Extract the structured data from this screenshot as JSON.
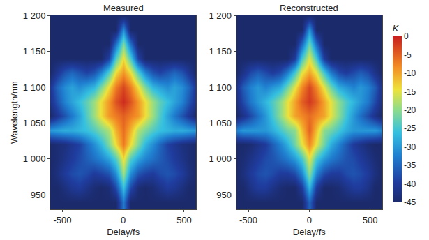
{
  "chart_data": [
    {
      "type": "heatmap",
      "title": "Measured",
      "xlabel": "Delay/fs",
      "ylabel": "Wavelength/nm",
      "xlim": [
        -600,
        600
      ],
      "ylim": [
        930,
        1200
      ],
      "xticks": [
        -500,
        0,
        500
      ],
      "yticks": [
        950,
        {
          "value": 1000,
          "label": "1 000"
        },
        {
          "value": 1050,
          "label": "1 050"
        },
        {
          "value": 1100,
          "label": "1 100"
        },
        {
          "value": 1150,
          "label": "1 150"
        },
        {
          "value": 1200,
          "label": "1 200"
        }
      ],
      "x": [
        -600,
        -540,
        -480,
        -420,
        -360,
        -300,
        -240,
        -180,
        -120,
        -60,
        0,
        60,
        120,
        180,
        240,
        300,
        360,
        420,
        480,
        540,
        600
      ],
      "y": [
        940,
        960,
        980,
        1000,
        1020,
        1040,
        1060,
        1080,
        1100,
        1120,
        1140,
        1160,
        1180,
        1200
      ],
      "colorbar_range": [
        -45,
        0
      ],
      "z": [
        [
          -45,
          -45,
          -45,
          -45,
          -45,
          -45,
          -45,
          -45,
          -45,
          -45,
          -33,
          -45,
          -45,
          -45,
          -45,
          -45,
          -45,
          -45,
          -45,
          -45,
          -45
        ],
        [
          -45,
          -45,
          -43,
          -41,
          -40,
          -42,
          -44,
          -45,
          -44,
          -38,
          -26,
          -38,
          -44,
          -45,
          -44,
          -42,
          -40,
          -41,
          -43,
          -45,
          -45
        ],
        [
          -45,
          -43,
          -40,
          -38,
          -37,
          -38,
          -40,
          -39,
          -37,
          -31,
          -19,
          -31,
          -37,
          -39,
          -40,
          -38,
          -37,
          -38,
          -40,
          -43,
          -45
        ],
        [
          -45,
          -44,
          -42,
          -40,
          -38,
          -36,
          -34,
          -32,
          -29,
          -24,
          -14,
          -24,
          -29,
          -32,
          -34,
          -36,
          -38,
          -40,
          -42,
          -44,
          -45
        ],
        [
          -45,
          -44,
          -43,
          -41,
          -39,
          -35,
          -31,
          -27,
          -21,
          -14,
          -7,
          -14,
          -21,
          -27,
          -31,
          -35,
          -39,
          -41,
          -43,
          -44,
          -45
        ],
        [
          -30,
          -29,
          -28,
          -28,
          -27,
          -26,
          -24,
          -21,
          -18,
          -11,
          -6,
          -11,
          -18,
          -21,
          -24,
          -26,
          -27,
          -28,
          -28,
          -29,
          -30
        ],
        [
          -45,
          -41,
          -37,
          -33,
          -29,
          -24,
          -19,
          -14,
          -9,
          -7,
          -5,
          -7,
          -9,
          -14,
          -19,
          -24,
          -29,
          -33,
          -37,
          -41,
          -45
        ],
        [
          -42,
          -37,
          -32,
          -29,
          -26,
          -23,
          -19,
          -14,
          -9,
          -4,
          -1,
          -4,
          -9,
          -14,
          -19,
          -23,
          -26,
          -29,
          -32,
          -37,
          -42
        ],
        [
          -41,
          -35,
          -31,
          -29,
          -31,
          -29,
          -27,
          -21,
          -14,
          -7,
          -3,
          -7,
          -14,
          -21,
          -27,
          -29,
          -31,
          -29,
          -31,
          -35,
          -41
        ],
        [
          -45,
          -41,
          -37,
          -35,
          -37,
          -39,
          -37,
          -32,
          -24,
          -14,
          -9,
          -14,
          -24,
          -32,
          -37,
          -39,
          -37,
          -35,
          -37,
          -41,
          -45
        ],
        [
          -45,
          -45,
          -45,
          -45,
          -45,
          -45,
          -45,
          -45,
          -39,
          -24,
          -14,
          -24,
          -39,
          -45,
          -45,
          -45,
          -45,
          -45,
          -45,
          -45,
          -45
        ],
        [
          -45,
          -45,
          -45,
          -45,
          -45,
          -45,
          -45,
          -45,
          -45,
          -34,
          -21,
          -34,
          -45,
          -45,
          -45,
          -45,
          -45,
          -45,
          -45,
          -45,
          -45
        ],
        [
          -45,
          -45,
          -45,
          -45,
          -45,
          -45,
          -45,
          -45,
          -45,
          -45,
          -31,
          -45,
          -45,
          -45,
          -45,
          -45,
          -45,
          -45,
          -45,
          -45,
          -45
        ],
        [
          -45,
          -45,
          -45,
          -45,
          -45,
          -45,
          -45,
          -45,
          -45,
          -45,
          -45,
          -45,
          -45,
          -45,
          -45,
          -45,
          -45,
          -45,
          -45,
          -45,
          -45
        ]
      ]
    },
    {
      "type": "heatmap",
      "title": "Reconstructed",
      "xlabel": "Delay/fs",
      "xlim": [
        -600,
        600
      ],
      "ylim": [
        930,
        1200
      ],
      "xticks": [
        -500,
        0,
        500
      ],
      "yticks": [
        950,
        {
          "value": 1000,
          "label": "1 000"
        },
        {
          "value": 1050,
          "label": "1 050"
        },
        {
          "value": 1100,
          "label": "1 100"
        },
        {
          "value": 1150,
          "label": "1 150"
        },
        {
          "value": 1200,
          "label": "1 200"
        }
      ],
      "x": [
        -600,
        -540,
        -480,
        -420,
        -360,
        -300,
        -240,
        -180,
        -120,
        -60,
        0,
        60,
        120,
        180,
        240,
        300,
        360,
        420,
        480,
        540,
        600
      ],
      "y": [
        940,
        960,
        980,
        1000,
        1020,
        1040,
        1060,
        1080,
        1100,
        1120,
        1140,
        1160,
        1180,
        1200
      ],
      "colorbar_range": [
        -45,
        0
      ],
      "colorbar_title": "K",
      "colorbar_ticks": [
        0,
        -5,
        -10,
        -15,
        -20,
        -25,
        -30,
        -35,
        -40,
        -45
      ],
      "z": [
        [
          -45,
          -45,
          -45,
          -45,
          -45,
          -45,
          -45,
          -45,
          -45,
          -45,
          -35,
          -45,
          -45,
          -45,
          -45,
          -45,
          -45,
          -45,
          -45,
          -45,
          -45
        ],
        [
          -45,
          -45,
          -42,
          -40,
          -40,
          -42,
          -44,
          -45,
          -45,
          -40,
          -27,
          -40,
          -45,
          -45,
          -44,
          -42,
          -40,
          -40,
          -42,
          -45,
          -45
        ],
        [
          -45,
          -43,
          -40,
          -38,
          -37,
          -38,
          -40,
          -40,
          -38,
          -32,
          -20,
          -32,
          -38,
          -40,
          -40,
          -38,
          -37,
          -38,
          -40,
          -43,
          -45
        ],
        [
          -45,
          -44,
          -42,
          -40,
          -38,
          -37,
          -35,
          -33,
          -30,
          -25,
          -15,
          -25,
          -30,
          -33,
          -35,
          -37,
          -38,
          -40,
          -42,
          -44,
          -45
        ],
        [
          -45,
          -45,
          -44,
          -42,
          -40,
          -36,
          -32,
          -28,
          -22,
          -15,
          -8,
          -15,
          -22,
          -28,
          -32,
          -36,
          -40,
          -42,
          -44,
          -45,
          -45
        ],
        [
          -32,
          -30,
          -30,
          -30,
          -30,
          -28,
          -25,
          -22,
          -20,
          -12,
          -5,
          -12,
          -20,
          -22,
          -25,
          -28,
          -30,
          -30,
          -30,
          -30,
          -32
        ],
        [
          -45,
          -42,
          -38,
          -34,
          -30,
          -25,
          -20,
          -15,
          -10,
          -8,
          -6,
          -8,
          -10,
          -15,
          -20,
          -25,
          -30,
          -34,
          -38,
          -42,
          -45
        ],
        [
          -43,
          -38,
          -33,
          -30,
          -27,
          -24,
          -20,
          -15,
          -10,
          -5,
          -2,
          -5,
          -10,
          -15,
          -20,
          -24,
          -27,
          -30,
          -33,
          -38,
          -43
        ],
        [
          -42,
          -36,
          -32,
          -30,
          -32,
          -30,
          -28,
          -22,
          -15,
          -8,
          -3,
          -8,
          -15,
          -22,
          -28,
          -30,
          -32,
          -30,
          -32,
          -36,
          -42
        ],
        [
          -45,
          -42,
          -38,
          -36,
          -38,
          -40,
          -38,
          -33,
          -25,
          -15,
          -10,
          -15,
          -25,
          -33,
          -38,
          -40,
          -38,
          -36,
          -38,
          -42,
          -45
        ],
        [
          -45,
          -45,
          -45,
          -45,
          -45,
          -45,
          -45,
          -45,
          -40,
          -25,
          -15,
          -25,
          -40,
          -45,
          -45,
          -45,
          -45,
          -45,
          -45,
          -45,
          -45
        ],
        [
          -45,
          -45,
          -45,
          -45,
          -45,
          -45,
          -45,
          -45,
          -45,
          -35,
          -22,
          -35,
          -45,
          -45,
          -45,
          -45,
          -45,
          -45,
          -45,
          -45,
          -45
        ],
        [
          -45,
          -45,
          -45,
          -45,
          -45,
          -45,
          -45,
          -45,
          -45,
          -45,
          -30,
          -45,
          -45,
          -45,
          -45,
          -45,
          -45,
          -45,
          -45,
          -45,
          -45
        ],
        [
          -45,
          -45,
          -45,
          -45,
          -45,
          -45,
          -45,
          -45,
          -45,
          -45,
          -45,
          -45,
          -45,
          -45,
          -45,
          -45,
          -45,
          -45,
          -45,
          -45,
          -45
        ]
      ]
    }
  ]
}
